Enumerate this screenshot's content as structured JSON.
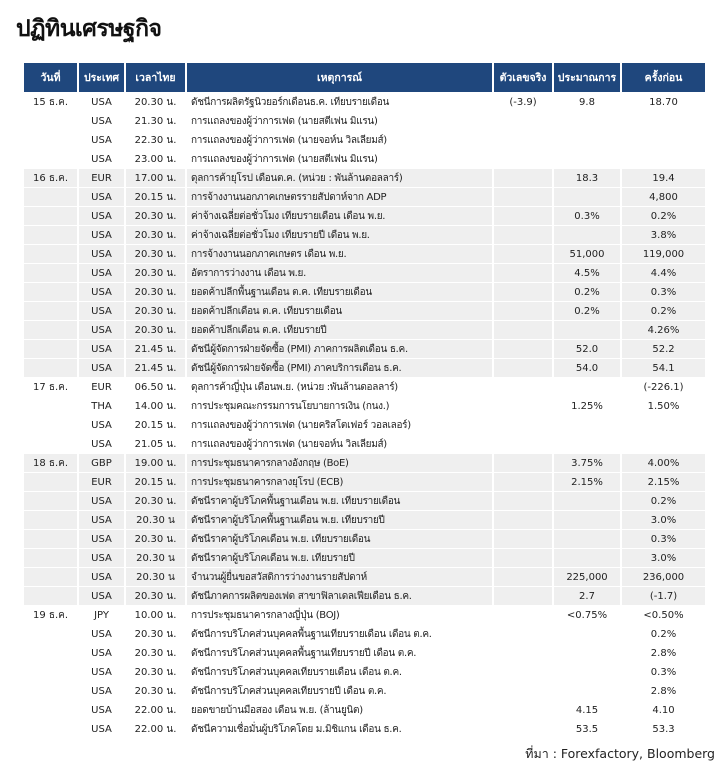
{
  "title": "ปฏิทินเศรษฐกิจ",
  "header_color": "#1f477d",
  "columns": [
    "วันที่",
    "ประเทศ",
    "เวลาไทย",
    "เหตุการณ์",
    "ตัวเลขจริง",
    "ประมาณการ",
    "ครั้งก่อน"
  ],
  "groups": [
    {
      "date": "15 ธ.ค.",
      "rows": [
        [
          "USA",
          "20.30 น.",
          "ดัชนีการผลิตรัฐนิวยอร์กเดือนธ.ค. เทียบรายเดือน",
          "(-3.9)",
          "9.8",
          "18.70"
        ],
        [
          "USA",
          "21.30 น.",
          "การแถลงของผู้ว่าการเฟด (นายสตีเฟน มิแรน)",
          "",
          "",
          ""
        ],
        [
          "USA",
          "22.30 น.",
          "การแถลงของผู้ว่าการเฟด (นายจอห์น วิลเลียมส์)",
          "",
          "",
          ""
        ],
        [
          "USA",
          "23.00 น.",
          "การแถลงของผู้ว่าการเฟด (นายสตีเฟน มิแรน)",
          "",
          "",
          ""
        ]
      ]
    },
    {
      "date": "16 ธ.ค.",
      "rows": [
        [
          "EUR",
          "17.00 น.",
          "ดุลการค้ายุโรป เดือนต.ค. (หน่วย : พันล้านดอลลาร์)",
          "",
          "18.3",
          "19.4"
        ],
        [
          "USA",
          "20.15 น.",
          "การจ้างงานนอกภาคเกษตรรายสัปดาห์จาก ADP",
          "",
          "",
          "4,800"
        ],
        [
          "USA",
          "20.30 น.",
          "ค่าจ้างเฉลี่ยต่อชั่วโมง เทียบรายเดือน เดือน พ.ย.",
          "",
          "0.3%",
          "0.2%"
        ],
        [
          "USA",
          "20.30 น.",
          "ค่าจ้างเฉลี่ยต่อชั่วโมง เทียบรายปี เดือน พ.ย.",
          "",
          "",
          "3.8%"
        ],
        [
          "USA",
          "20.30 น.",
          "การจ้างงานนอกภาคเกษตร เดือน พ.ย.",
          "",
          "51,000",
          "119,000"
        ],
        [
          "USA",
          "20.30 น.",
          "อัตราการว่างงาน เดือน พ.ย.",
          "",
          "4.5%",
          "4.4%"
        ],
        [
          "USA",
          "20.30 น.",
          "ยอดค้าปลีกพื้นฐานเดือน ต.ค. เทียบรายเดือน",
          "",
          "0.2%",
          "0.3%"
        ],
        [
          "USA",
          "20.30 น.",
          "ยอดค้าปลีกเดือน ต.ค. เทียบรายเดือน",
          "",
          "0.2%",
          "0.2%"
        ],
        [
          "USA",
          "20.30 น.",
          "ยอดค้าปลีกเดือน ต.ค. เทียบรายปี",
          "",
          "",
          "4.26%"
        ],
        [
          "USA",
          "21.45 น.",
          "ดัชนีผู้จัดการฝ่ายจัดซื้อ (PMI) ภาคการผลิตเดือน ธ.ค.",
          "",
          "52.0",
          "52.2"
        ],
        [
          "USA",
          "21.45 น.",
          "ดัชนีผู้จัดการฝ่ายจัดซื้อ (PMI) ภาคบริการเดือน ธ.ค.",
          "",
          "54.0",
          "54.1"
        ]
      ]
    },
    {
      "date": "17 ธ.ค.",
      "rows": [
        [
          "EUR",
          "06.50 น.",
          "ดุลการค้าญี่ปุ่น เดือนพ.ย. (หน่วย :พันล้านดอลลาร์)",
          "",
          "",
          "(-226.1)"
        ],
        [
          "THA",
          "14.00 น.",
          "การประชุมคณะกรรมการนโยบายการเงิน (กนง.)",
          "",
          "1.25%",
          "1.50%"
        ],
        [
          "USA",
          "20.15 น.",
          "การแถลงของผู้ว่าการเฟด (นายคริสโตเฟอร์ วอลเลอร์)",
          "",
          "",
          ""
        ],
        [
          "USA",
          "21.05 น.",
          "การแถลงของผู้ว่าการเฟด (นายจอห์น วิลเลียมส์)",
          "",
          "",
          ""
        ]
      ]
    },
    {
      "date": "18 ธ.ค.",
      "rows": [
        [
          "GBP",
          "19.00 น.",
          "การประชุมธนาคารกลางอังกฤษ (BoE)",
          "",
          "3.75%",
          "4.00%"
        ],
        [
          "EUR",
          "20.15 น.",
          "การประชุมธนาคารกลางยุโรป (ECB)",
          "",
          "2.15%",
          "2.15%"
        ],
        [
          "USA",
          "20.30 น.",
          "ดัชนีราคาผู้บริโภคพื้นฐานเดือน พ.ย. เทียบรายเดือน",
          "",
          "",
          "0.2%"
        ],
        [
          "USA",
          "20.30 น",
          "ดัชนีราคาผู้บริโภคพื้นฐานเดือน พ.ย. เทียบรายปี",
          "",
          "",
          "3.0%"
        ],
        [
          "USA",
          "20.30 น.",
          "ดัชนีราคาผู้บริโภคเดือน พ.ย. เทียบรายเดือน",
          "",
          "",
          "0.3%"
        ],
        [
          "USA",
          "20.30 น",
          "ดัชนีราคาผู้บริโภคเดือน พ.ย. เทียบรายปี",
          "",
          "",
          "3.0%"
        ],
        [
          "USA",
          "20.30 น",
          "จำนวนผู้ยื่นขอสวัสดิการว่างงานรายสัปดาห์",
          "",
          "225,000",
          "236,000"
        ],
        [
          "USA",
          "20.30 น.",
          "ดัชนีภาคการผลิตของเฟด สาขาฟิลาเดลเฟียเดือน ธ.ค.",
          "",
          "2.7",
          "(-1.7)"
        ]
      ]
    },
    {
      "date": "19 ธ.ค.",
      "rows": [
        [
          "JPY",
          "10.00 น.",
          "การประชุมธนาคารกลางญี่ปุ่น (BOJ)",
          "",
          "<0.75%",
          "<0.50%"
        ],
        [
          "USA",
          "20.30 น.",
          "ดัชนีการบริโภคส่วนบุคคลพื้นฐานเทียบรายเดือน เดือน ต.ค.",
          "",
          "",
          "0.2%"
        ],
        [
          "USA",
          "20.30 น.",
          "ดัชนีการบริโภคส่วนบุคคลพื้นฐานเทียบรายปี เดือน ต.ค.",
          "",
          "",
          "2.8%"
        ],
        [
          "USA",
          "20.30 น.",
          "ดัชนีการบริโภคส่วนบุคคลเทียบรายเดือน เดือน ต.ค.",
          "",
          "",
          "0.3%"
        ],
        [
          "USA",
          "20.30 น.",
          "ดัชนีการบริโภคส่วนบุคคลเทียบรายปี เดือน ต.ค.",
          "",
          "",
          "2.8%"
        ],
        [
          "USA",
          "22.00 น.",
          "ยอดขายบ้านมือสอง เดือน พ.ย. (ล้านยูนิต)",
          "",
          "4.15",
          "4.10"
        ],
        [
          "USA",
          "22.00 น.",
          "ดัชนีความเชื่อมั่นผู้บริโภคโดย ม.มิชิแกน เดือน ธ.ค.",
          "",
          "53.5",
          "53.3"
        ]
      ]
    }
  ],
  "source": "ที่มา : Forexfactory, Bloomberg"
}
